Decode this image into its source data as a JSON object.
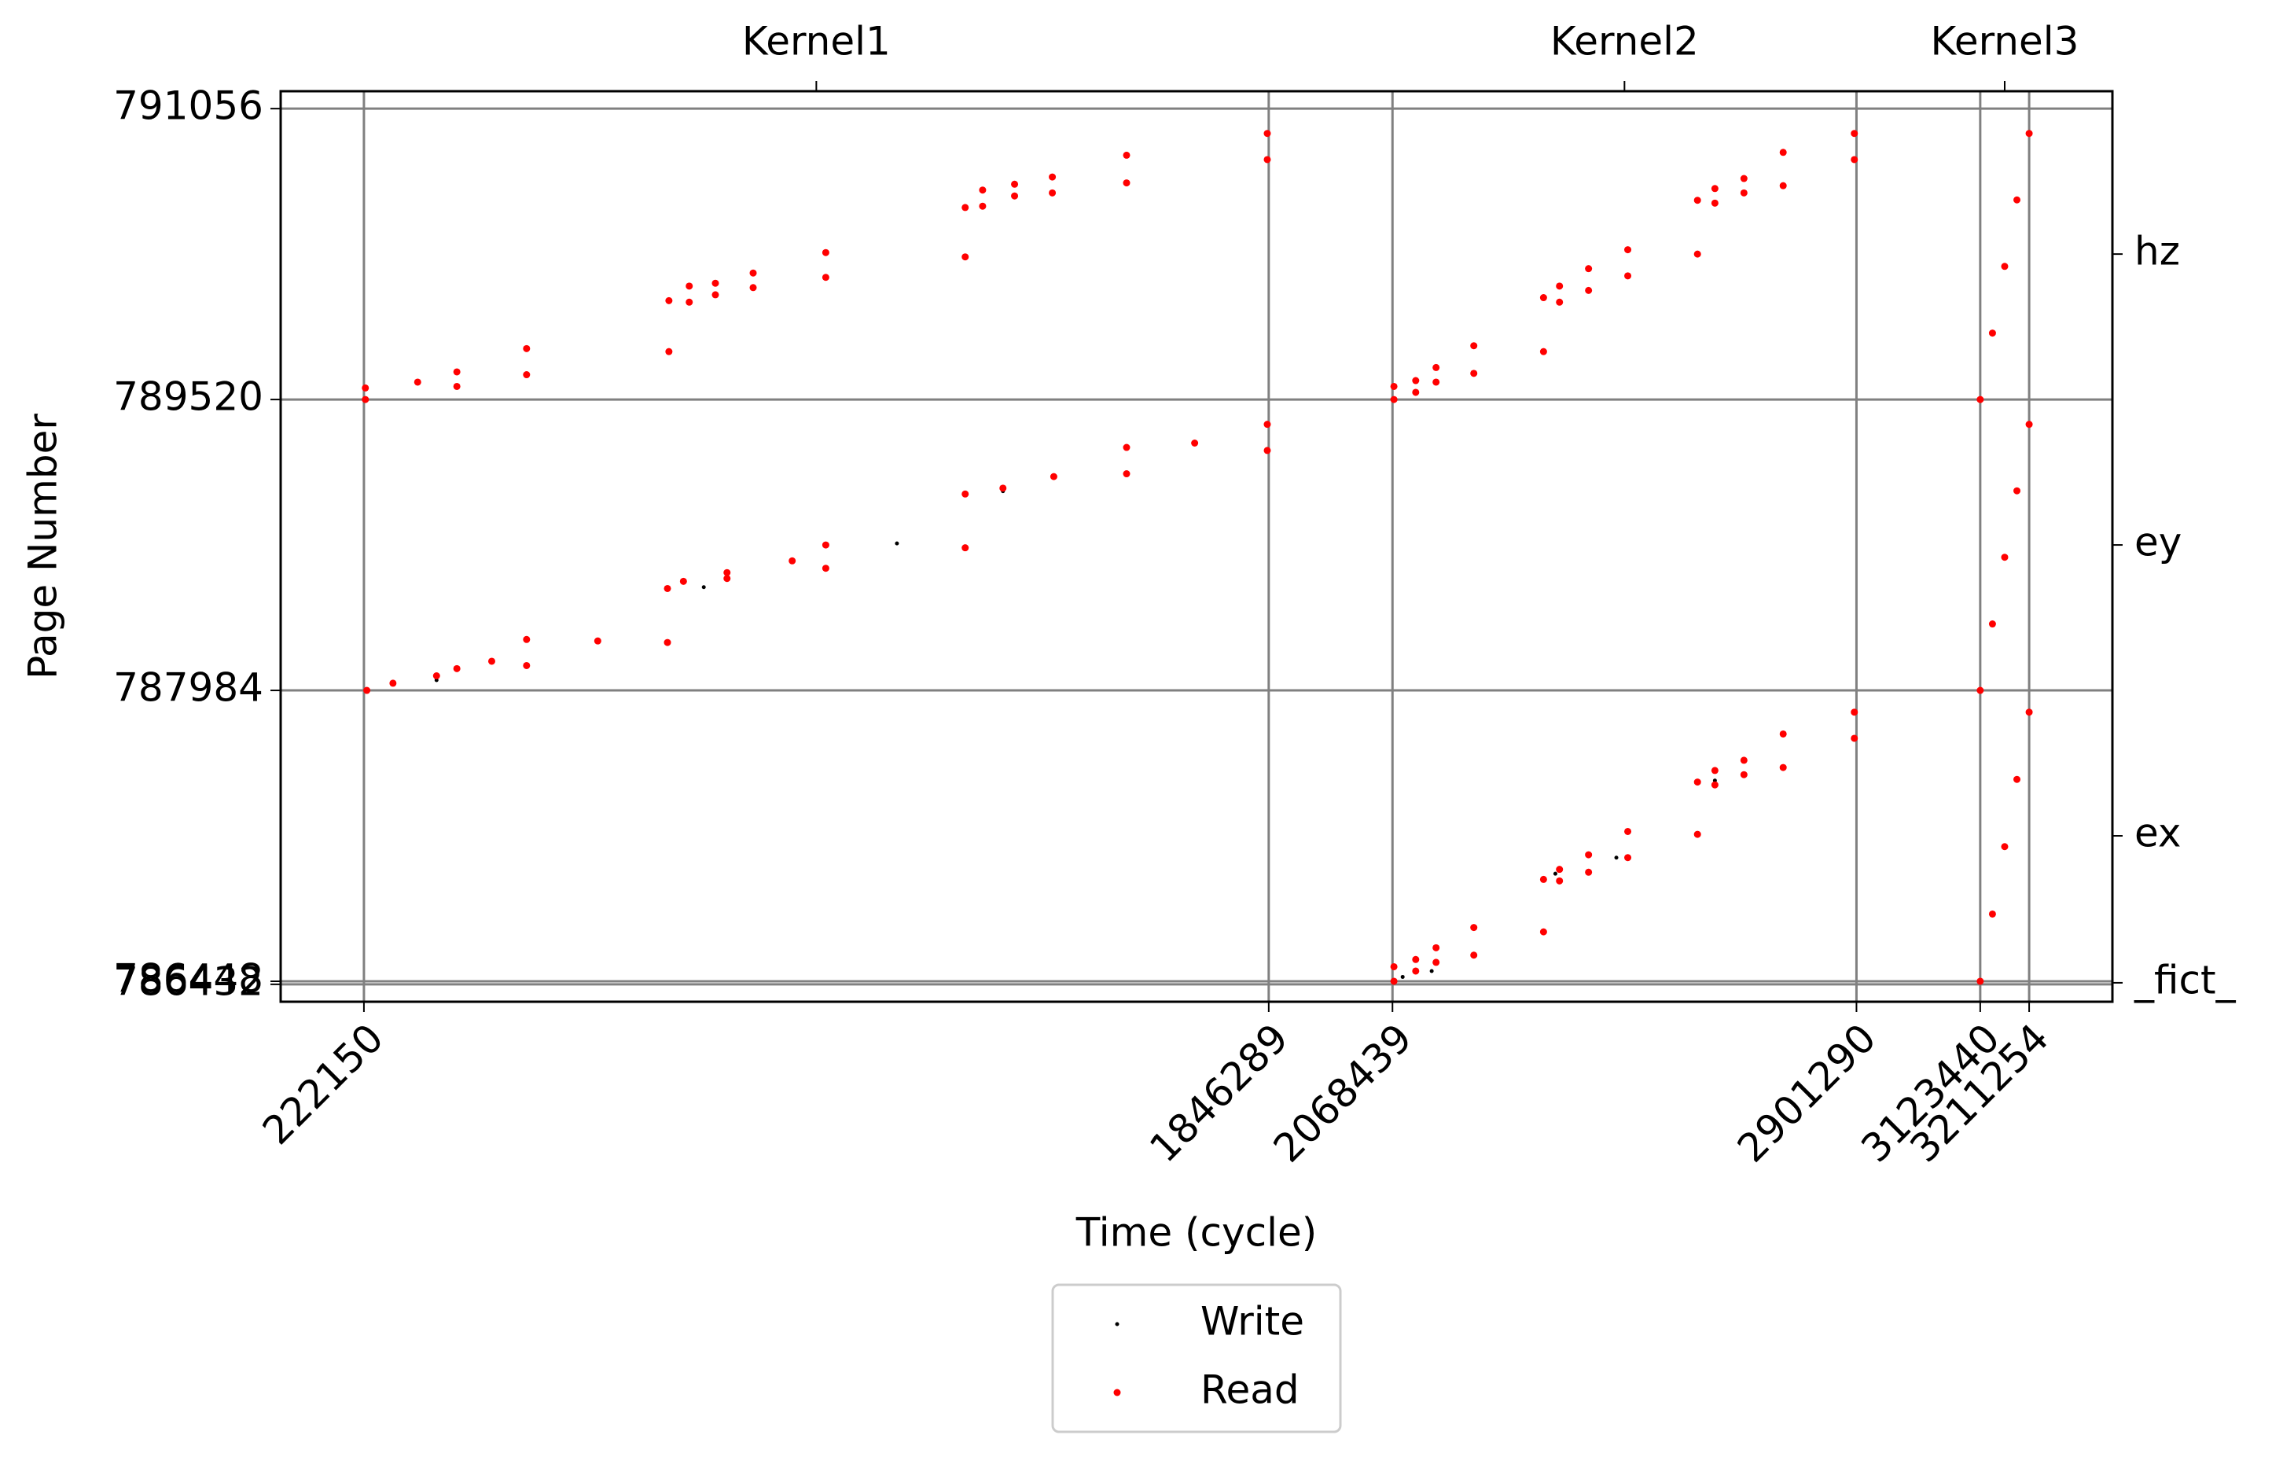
{
  "chart_data": {
    "type": "scatter",
    "xlabel": "Time (cycle)",
    "ylabel": "Page Number",
    "xlim": [
      72695,
      3360709
    ],
    "ylim": [
      786340,
      791148
    ],
    "xticks": [
      222150,
      1846289,
      2068439,
      2901290,
      3123440,
      3211254
    ],
    "yticks": [
      786432,
      786448,
      787984,
      789520,
      791056
    ],
    "y2lim": [
      786340,
      791148
    ],
    "y2ticks": [
      {
        "value": 786440,
        "label": "_fict_"
      },
      {
        "value": 787216,
        "label": "ex"
      },
      {
        "value": 788752,
        "label": "ey"
      },
      {
        "value": 790288,
        "label": "hz"
      }
    ],
    "x2ticks": [
      {
        "value": 1034219.5,
        "label": "Kernel1"
      },
      {
        "value": 2484864.5,
        "label": "Kernel2"
      },
      {
        "value": 3167347,
        "label": "Kernel3"
      }
    ],
    "grid": true,
    "legend": "bottom",
    "series": [
      {
        "name": "Write",
        "color": "#000000",
        "x": [
          274290,
          352500,
          832188,
          1178919,
          1369230,
          2086688,
          2138828,
          2360801,
          2470301,
          2647193
        ],
        "values": [
          788022,
          788038,
          788529,
          788760,
          789036,
          786471,
          786502,
          787016,
          787101,
          787508
        ]
      },
      {
        "name": "Read",
        "color": "#ff0000",
        "x": [
          224757,
          224757,
          318600,
          389000,
          389000,
          514134,
          514134,
          769620,
          769620,
          806118,
          806118,
          853044,
          853044,
          920826,
          920826,
          1051176,
          1051176,
          1301448,
          1301448,
          1332732,
          1332732,
          1390086,
          1390086,
          1457868,
          1457868,
          1591110,
          1591110,
          1843704,
          1843704,
          2071046,
          2071046,
          2110151,
          2110151,
          2146649,
          2146649,
          2214431,
          2214431,
          2339567,
          2339567,
          2368244,
          2368244,
          2420384,
          2420384,
          2490773,
          2490773,
          2615909,
          2615909,
          2647193,
          2647193,
          2699333,
          2699333,
          2769722,
          2769722,
          2897465,
          2897465,
          227364,
          274290,
          352500,
          388998,
          451566,
          514134,
          514134,
          641877,
          767013,
          767013,
          795690,
          873900,
          873900,
          990915,
          1051176,
          1051176,
          1301448,
          1301448,
          1369230,
          1460475,
          1591110,
          1591110,
          1713354,
          1843704,
          1843704,
          2071046,
          2071046,
          2110151,
          2110151,
          2146649,
          2146649,
          2214431,
          2214431,
          2339567,
          2339567,
          2368244,
          2368244,
          2420384,
          2420384,
          2490773,
          2490773,
          2615909,
          2615909,
          2647193,
          2647193,
          2699333,
          2699333,
          2769722,
          2769722,
          2897465,
          2897465,
          3123440,
          3145394,
          3167347,
          3189301,
          3211254,
          3123440,
          3145394,
          3167347,
          3189301,
          3211254,
          3123440,
          3145394,
          3167347,
          3189301,
          3211254
        ],
        "values": [
          789520,
          789581,
          789612,
          789666,
          789589,
          789789,
          789651,
          790042,
          789773,
          790119,
          790034,
          790134,
          790073,
          790188,
          790111,
          790296,
          790165,
          790534,
          790273,
          790626,
          790541,
          790657,
          790595,
          790695,
          790611,
          790810,
          790664,
          790925,
          790787,
          789589,
          789520,
          789620,
          789558,
          789689,
          789612,
          789804,
          789658,
          790058,
          789773,
          790119,
          790034,
          790211,
          790096,
          790311,
          790173,
          790572,
          790288,
          790634,
          790557,
          790687,
          790611,
          790825,
          790649,
          790925,
          790787,
          787984,
          788022,
          788061,
          788099,
          788138,
          788253,
          788115,
          788245,
          788522,
          788237,
          788560,
          788606,
          788575,
          788668,
          788752,
          788629,
          789021,
          788737,
          789052,
          789113,
          789267,
          789128,
          789290,
          789389,
          789251,
          786525,
          786448,
          786563,
          786502,
          786625,
          786548,
          786732,
          786586,
          786986,
          786709,
          787039,
          786978,
          787116,
          787024,
          787239,
          787101,
          787500,
          787224,
          787561,
          787485,
          787615,
          787539,
          787754,
          787577,
          787869,
          787731,
          789520,
          789871,
          790223,
          790574,
          790925,
          787984,
          788335,
          788687,
          789038,
          789389,
          786448,
          786803,
          787159,
          787514,
          787869
        ]
      }
    ]
  }
}
